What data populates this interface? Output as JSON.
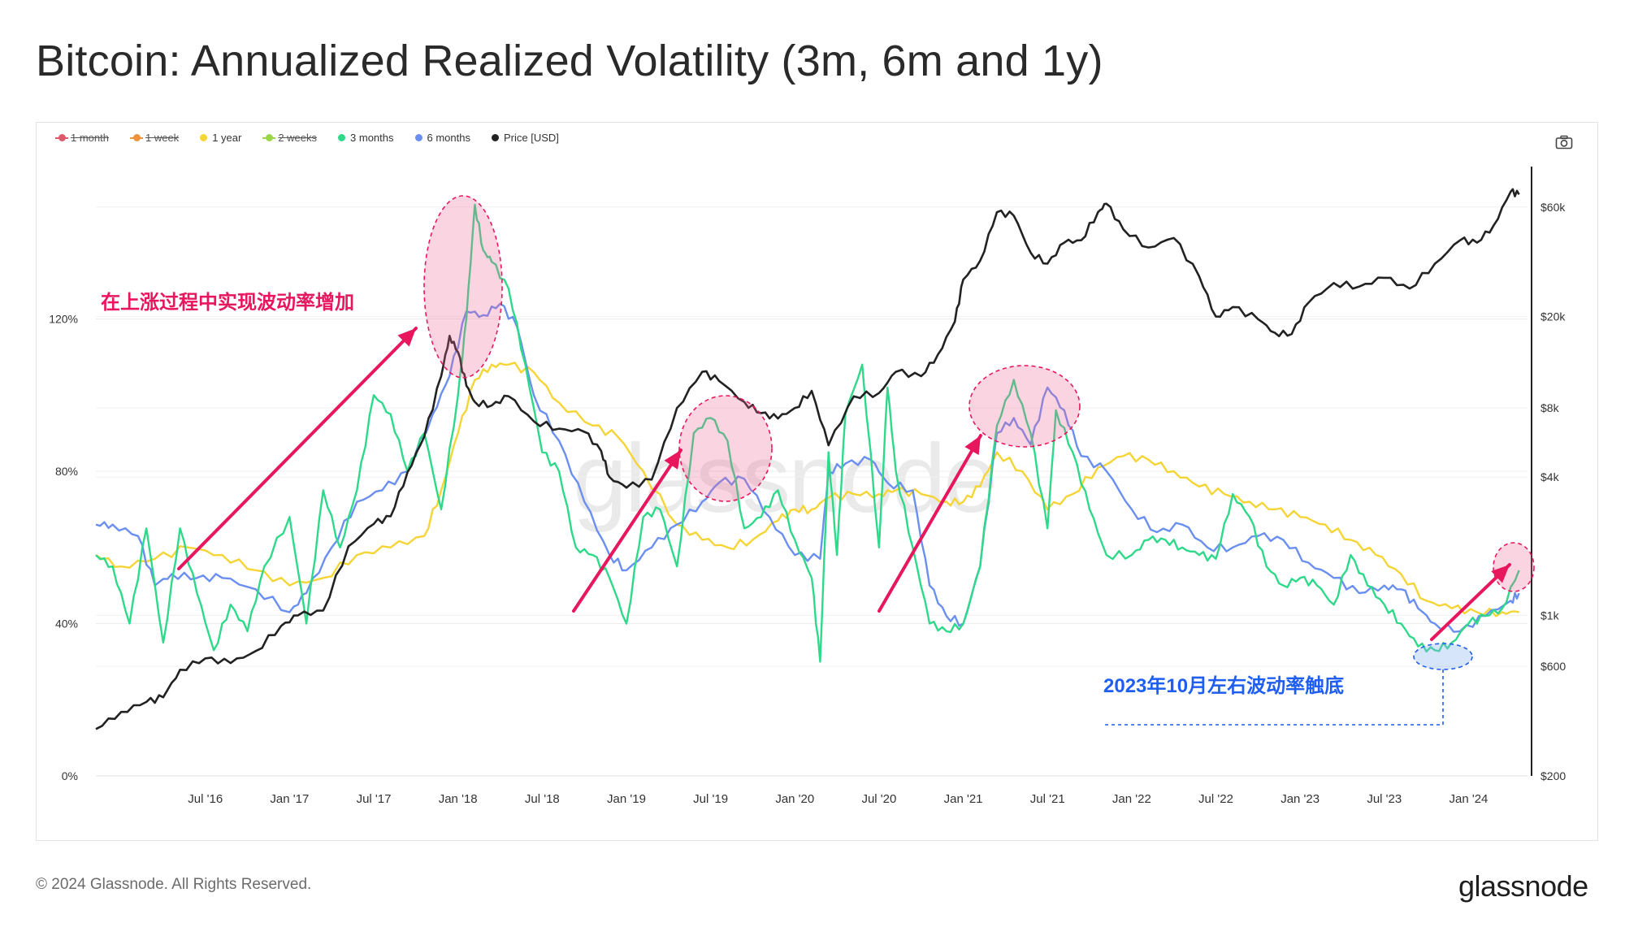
{
  "title": "Bitcoin: Annualized Realized Volatility (3m, 6m and 1y)",
  "copyright": "© 2024 Glassnode. All Rights Reserved.",
  "brand": "glassnode",
  "watermark": "glassnode",
  "annotations": {
    "rising": "在上涨过程中实现波动率增加",
    "bottom": "2023年10月左右波动率触底"
  },
  "legend": [
    {
      "label": "1 month",
      "color": "#e0596b",
      "enabled": false
    },
    {
      "label": "1 week",
      "color": "#f0923a",
      "enabled": false
    },
    {
      "label": "1 year",
      "color": "#f5d536",
      "enabled": true
    },
    {
      "label": "2 weeks",
      "color": "#9bd64a",
      "enabled": false
    },
    {
      "label": "3 months",
      "color": "#2fd98a",
      "enabled": true
    },
    {
      "label": "6 months",
      "color": "#6a8ff0",
      "enabled": true
    },
    {
      "label": "Price [USD]",
      "color": "#222222",
      "enabled": true
    }
  ],
  "chart_data": {
    "type": "line",
    "title": "Bitcoin: Annualized Realized Volatility (3m, 6m and 1y)",
    "x_ticks": [
      "Jul '16",
      "Jan '17",
      "Jul '17",
      "Jan '18",
      "Jul '18",
      "Jan '19",
      "Jul '19",
      "Jan '20",
      "Jul '20",
      "Jan '21",
      "Jul '21",
      "Jan '22",
      "Jul '22",
      "Jan '23",
      "Jul '23",
      "Jan '24"
    ],
    "y_left": {
      "ticks": [
        "0%",
        "40%",
        "80%",
        "120%"
      ],
      "tick_values": [
        0,
        40,
        80,
        120
      ],
      "range": [
        0,
        160
      ]
    },
    "y_right": {
      "scale": "log",
      "ticks": [
        "$200",
        "$600",
        "$1k",
        "$4k",
        "$8k",
        "$20k",
        "$60k"
      ],
      "tick_values": [
        200,
        600,
        1000,
        4000,
        8000,
        20000,
        60000
      ],
      "range": [
        200,
        90000
      ]
    },
    "x_range_years": [
      2015.85,
      2024.35
    ],
    "series": [
      {
        "name": "1 year",
        "axis": "left",
        "color": "#f5d536",
        "x": [
          2015.85,
          2016.0,
          2016.2,
          2016.4,
          2016.6,
          2016.8,
          2017.0,
          2017.2,
          2017.4,
          2017.6,
          2017.8,
          2017.9,
          2018.0,
          2018.1,
          2018.2,
          2018.3,
          2018.45,
          2018.6,
          2018.8,
          2018.95,
          2019.1,
          2019.3,
          2019.45,
          2019.6,
          2019.75,
          2019.9,
          2020.0,
          2020.1,
          2020.2,
          2020.35,
          2020.5,
          2020.6,
          2020.75,
          2020.9,
          2021.0,
          2021.1,
          2021.2,
          2021.35,
          2021.5,
          2021.65,
          2021.8,
          2021.95,
          2022.1,
          2022.25,
          2022.4,
          2022.55,
          2022.7,
          2022.85,
          2023.0,
          2023.15,
          2023.3,
          2023.45,
          2023.6,
          2023.75,
          2023.9,
          2024.05,
          2024.2,
          2024.3
        ],
        "values": [
          58,
          55,
          57,
          60,
          58,
          54,
          50,
          52,
          58,
          60,
          63,
          75,
          90,
          104,
          108,
          108,
          106,
          98,
          92,
          89,
          80,
          66,
          62,
          60,
          62,
          67,
          70,
          70,
          73,
          74,
          74,
          75,
          74,
          72,
          72,
          76,
          85,
          80,
          70,
          74,
          81,
          84,
          83,
          80,
          76,
          74,
          72,
          70,
          68,
          66,
          62,
          58,
          53,
          46,
          44,
          43,
          43,
          43
        ]
      },
      {
        "name": "6 months",
        "axis": "left",
        "color": "#6a8ff0",
        "x": [
          2015.85,
          2015.95,
          2016.1,
          2016.2,
          2016.3,
          2016.45,
          2016.6,
          2016.8,
          2017.0,
          2017.1,
          2017.25,
          2017.4,
          2017.55,
          2017.7,
          2017.85,
          2017.95,
          2018.05,
          2018.15,
          2018.25,
          2018.35,
          2018.45,
          2018.6,
          2018.75,
          2018.9,
          2019.0,
          2019.15,
          2019.3,
          2019.45,
          2019.55,
          2019.7,
          2019.85,
          2020.0,
          2020.15,
          2020.2,
          2020.3,
          2020.45,
          2020.55,
          2020.7,
          2020.8,
          2020.9,
          2021.0,
          2021.1,
          2021.2,
          2021.3,
          2021.4,
          2021.5,
          2021.6,
          2021.7,
          2021.85,
          2022.0,
          2022.15,
          2022.3,
          2022.45,
          2022.6,
          2022.75,
          2022.9,
          2023.05,
          2023.2,
          2023.35,
          2023.5,
          2023.6,
          2023.7,
          2023.8,
          2023.95,
          2024.1,
          2024.25,
          2024.3
        ],
        "values": [
          66,
          66,
          63,
          50,
          53,
          52,
          52,
          49,
          43,
          48,
          60,
          72,
          75,
          80,
          95,
          105,
          122,
          121,
          124,
          118,
          100,
          88,
          72,
          58,
          54,
          60,
          66,
          72,
          77,
          78,
          68,
          58,
          57,
          80,
          82,
          83,
          77,
          75,
          50,
          42,
          40,
          55,
          90,
          94,
          87,
          102,
          96,
          84,
          80,
          70,
          64,
          66,
          60,
          60,
          63,
          62,
          56,
          52,
          48,
          50,
          49,
          44,
          40,
          38,
          42,
          46,
          48
        ]
      },
      {
        "name": "3 months",
        "axis": "left",
        "color": "#2fd98a",
        "x": [
          2015.85,
          2015.95,
          2016.05,
          2016.15,
          2016.25,
          2016.35,
          2016.45,
          2016.55,
          2016.65,
          2016.75,
          2016.85,
          2017.0,
          2017.1,
          2017.2,
          2017.3,
          2017.4,
          2017.5,
          2017.6,
          2017.7,
          2017.8,
          2017.9,
          2018.0,
          2018.05,
          2018.1,
          2018.15,
          2018.2,
          2018.3,
          2018.4,
          2018.5,
          2018.6,
          2018.7,
          2018.8,
          2018.9,
          2019.0,
          2019.1,
          2019.2,
          2019.3,
          2019.4,
          2019.5,
          2019.6,
          2019.7,
          2019.8,
          2019.9,
          2020.0,
          2020.1,
          2020.15,
          2020.2,
          2020.25,
          2020.3,
          2020.4,
          2020.5,
          2020.55,
          2020.6,
          2020.7,
          2020.8,
          2020.9,
          2021.0,
          2021.1,
          2021.2,
          2021.3,
          2021.4,
          2021.5,
          2021.55,
          2021.65,
          2021.75,
          2021.85,
          2022.0,
          2022.1,
          2022.2,
          2022.3,
          2022.4,
          2022.5,
          2022.6,
          2022.7,
          2022.8,
          2022.9,
          2023.0,
          2023.1,
          2023.2,
          2023.3,
          2023.4,
          2023.5,
          2023.6,
          2023.7,
          2023.8,
          2023.9,
          2024.0,
          2024.1,
          2024.2,
          2024.3
        ],
        "values": [
          58,
          55,
          40,
          65,
          35,
          65,
          48,
          33,
          45,
          38,
          55,
          68,
          40,
          75,
          60,
          75,
          100,
          95,
          80,
          90,
          70,
          100,
          120,
          150,
          138,
          135,
          128,
          108,
          85,
          80,
          60,
          58,
          52,
          40,
          68,
          70,
          55,
          90,
          94,
          88,
          65,
          68,
          75,
          62,
          52,
          30,
          85,
          58,
          95,
          108,
          60,
          102,
          80,
          60,
          40,
          38,
          40,
          55,
          92,
          104,
          90,
          65,
          96,
          85,
          70,
          58,
          58,
          62,
          62,
          60,
          58,
          57,
          74,
          68,
          55,
          50,
          52,
          50,
          45,
          58,
          50,
          45,
          40,
          34,
          33,
          35,
          40,
          42,
          44,
          54
        ]
      },
      {
        "name": "Price [USD]",
        "axis": "right",
        "color": "#222222",
        "x": [
          2015.85,
          2016.0,
          2016.15,
          2016.25,
          2016.35,
          2016.5,
          2016.65,
          2016.8,
          2016.95,
          2017.05,
          2017.2,
          2017.35,
          2017.5,
          2017.6,
          2017.7,
          2017.8,
          2017.9,
          2017.95,
          2018.0,
          2018.05,
          2018.1,
          2018.2,
          2018.3,
          2018.45,
          2018.6,
          2018.75,
          2018.85,
          2018.9,
          2019.0,
          2019.15,
          2019.3,
          2019.45,
          2019.55,
          2019.7,
          2019.8,
          2019.9,
          2020.0,
          2020.1,
          2020.2,
          2020.35,
          2020.5,
          2020.6,
          2020.75,
          2020.85,
          2020.95,
          2021.0,
          2021.1,
          2021.2,
          2021.3,
          2021.4,
          2021.5,
          2021.6,
          2021.7,
          2021.8,
          2021.85,
          2021.95,
          2022.1,
          2022.25,
          2022.4,
          2022.5,
          2022.6,
          2022.75,
          2022.85,
          2022.95,
          2023.05,
          2023.2,
          2023.35,
          2023.5,
          2023.65,
          2023.8,
          2023.95,
          2024.05,
          2024.15,
          2024.25,
          2024.3
        ],
        "values": [
          320,
          380,
          420,
          440,
          580,
          650,
          620,
          700,
          900,
          1000,
          1050,
          2000,
          2500,
          2700,
          4200,
          6000,
          11000,
          16500,
          14000,
          10000,
          8500,
          8200,
          9000,
          7000,
          6500,
          6300,
          5200,
          4000,
          3600,
          3900,
          8000,
          11500,
          10500,
          8500,
          7600,
          7200,
          8000,
          9500,
          5500,
          9000,
          9300,
          11500,
          11000,
          13700,
          19000,
          29000,
          35000,
          57000,
          55000,
          38000,
          34000,
          42000,
          43000,
          57000,
          62000,
          48000,
          40000,
          44000,
          30000,
          20000,
          22000,
          19500,
          17000,
          16800,
          23000,
          28000,
          27000,
          29500,
          26500,
          34000,
          43000,
          42000,
          50000,
          70000,
          68000
        ]
      }
    ]
  }
}
